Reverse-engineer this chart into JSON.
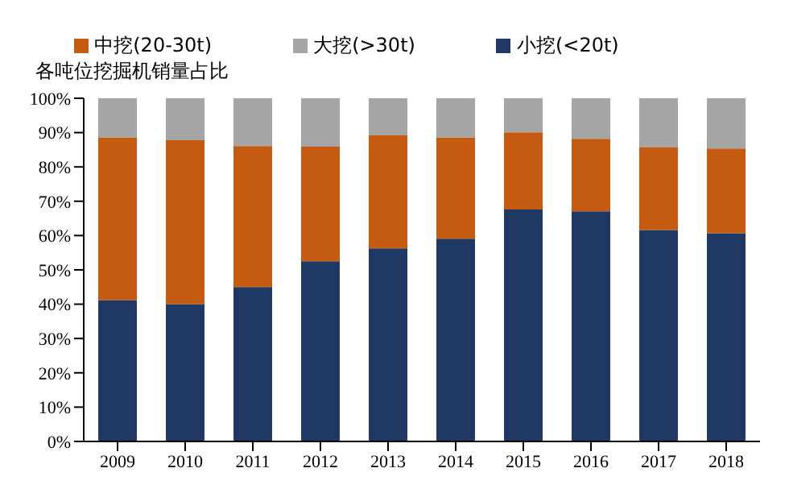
{
  "chart_data": {
    "type": "bar",
    "stacked": true,
    "ylabel": "各吨位挖掘机销量占比",
    "legend": "top",
    "categories": [
      "2009",
      "2010",
      "2011",
      "2012",
      "2013",
      "2014",
      "2015",
      "2016",
      "2017",
      "2018"
    ],
    "series": [
      {
        "name": "小挖(<20t)",
        "color": "#1f3864",
        "values": [
          41.2,
          40.0,
          45.0,
          52.5,
          56.3,
          59.1,
          67.6,
          67.1,
          61.6,
          60.7
        ]
      },
      {
        "name": "中挖(20-30t)",
        "color": "#c55a11",
        "values": [
          47.4,
          47.8,
          41.1,
          33.4,
          32.9,
          29.5,
          22.5,
          21.1,
          24.1,
          24.7
        ]
      },
      {
        "name": "大挖(>30t)",
        "color": "#a5a5a5",
        "values": [
          11.4,
          12.2,
          13.9,
          14.1,
          10.8,
          11.4,
          9.9,
          11.8,
          14.3,
          14.6
        ]
      }
    ],
    "ylim": [
      0,
      100
    ],
    "yticks": [
      {
        "value": 0,
        "label": "0%"
      },
      {
        "value": 10,
        "label": "10%"
      },
      {
        "value": 20,
        "label": "20%"
      },
      {
        "value": 30,
        "label": "30%"
      },
      {
        "value": 40,
        "label": "40%"
      },
      {
        "value": 50,
        "label": "50%"
      },
      {
        "value": 60,
        "label": "60%"
      },
      {
        "value": 70,
        "label": "70%"
      },
      {
        "value": 80,
        "label": "80%"
      },
      {
        "value": 90,
        "label": "90%"
      },
      {
        "value": 100,
        "label": "100%"
      }
    ],
    "grid": false
  }
}
